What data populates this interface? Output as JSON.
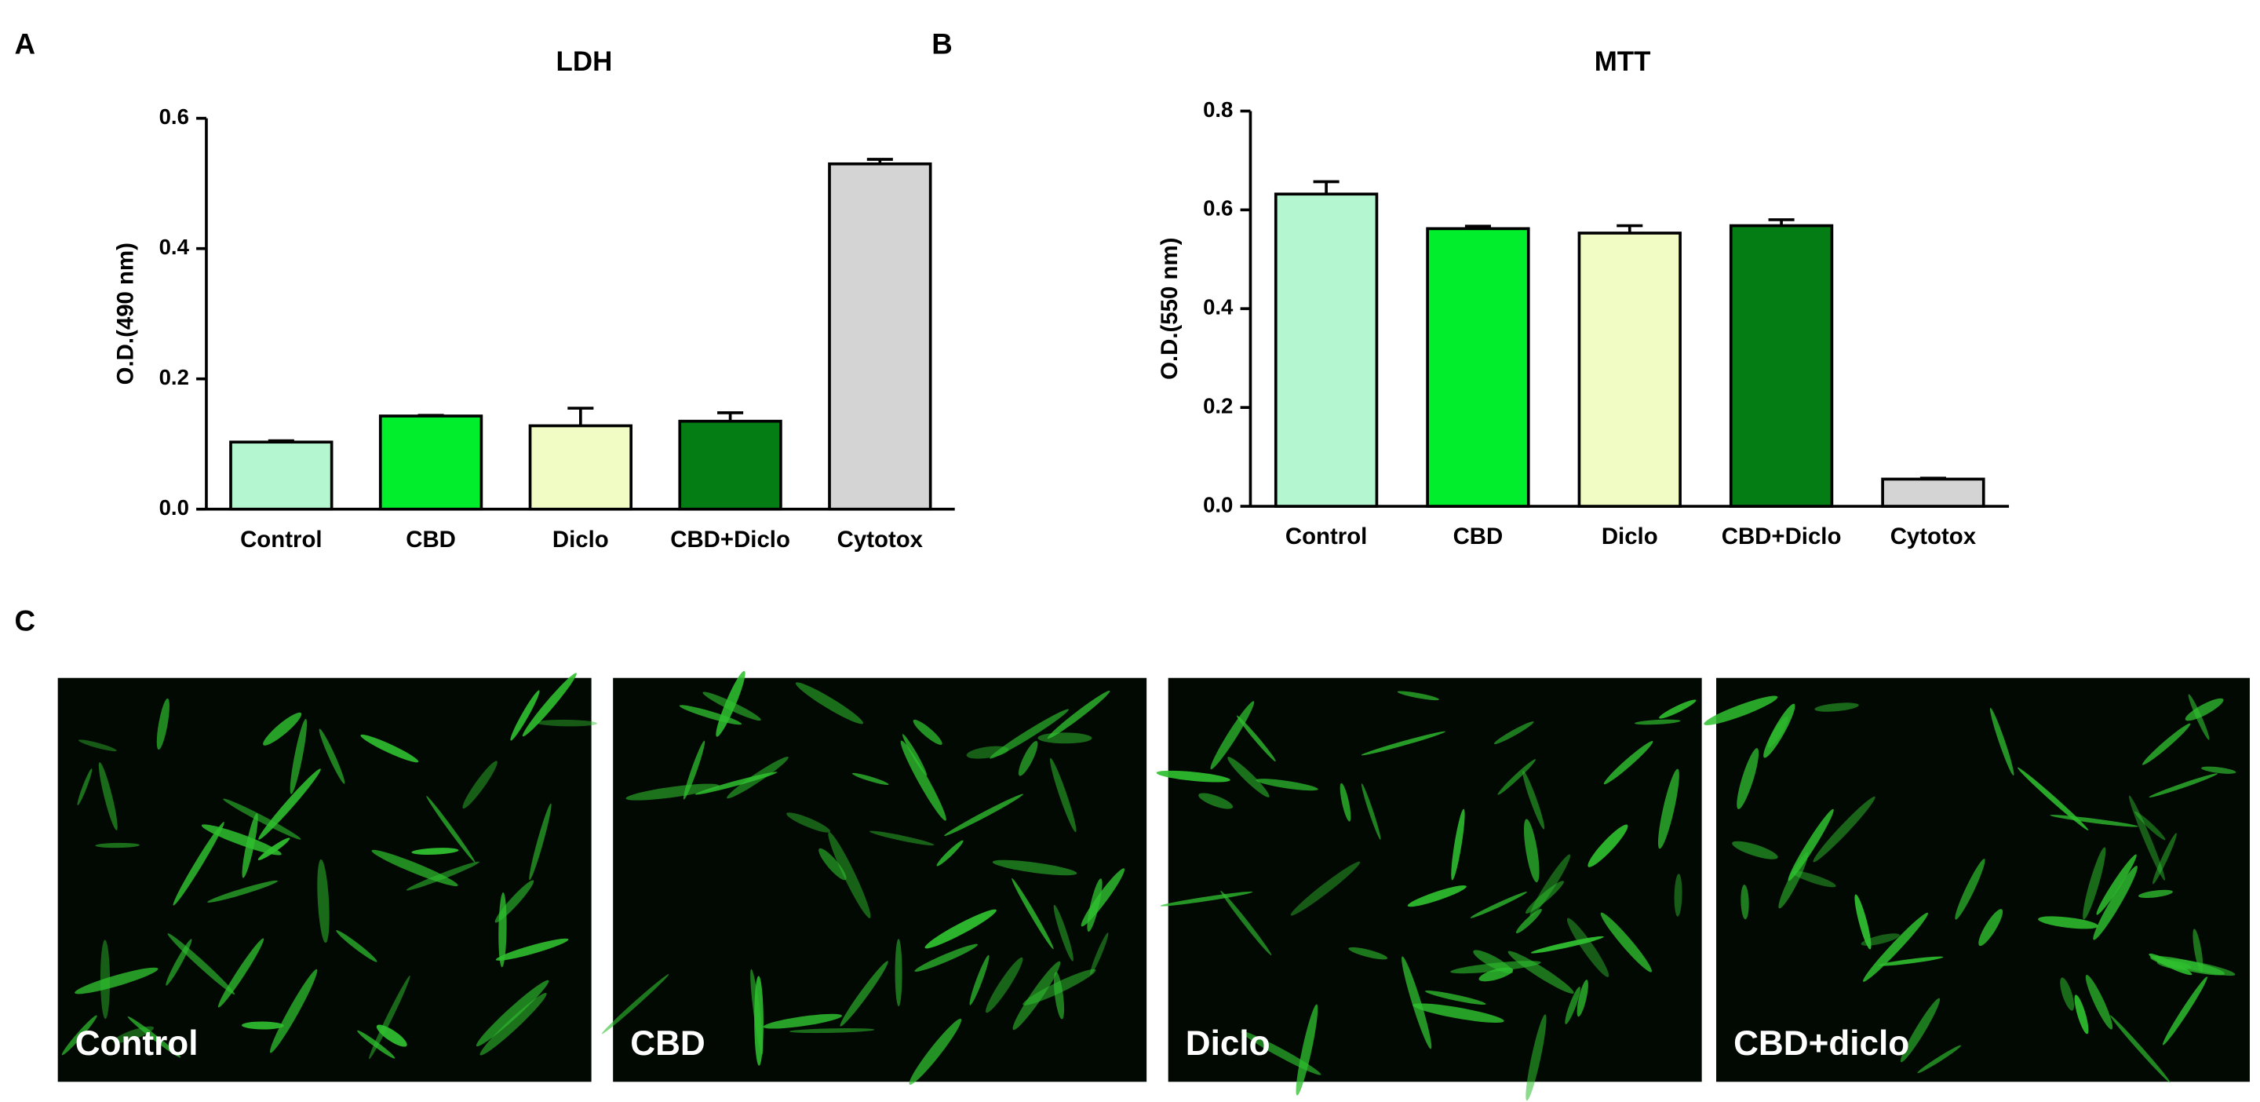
{
  "chart_data": [
    {
      "type": "bar",
      "panel": "A",
      "title": "LDH",
      "y_label": "O.D.(490 nm)",
      "categories": [
        "Control",
        "CBD",
        "Diclo",
        "CBD+Diclo",
        "Cytotox"
      ],
      "values": [
        0.103,
        0.143,
        0.128,
        0.135,
        0.53
      ],
      "errors": [
        0.002,
        0.001,
        0.027,
        0.013,
        0.007
      ],
      "colors": [
        "#b3f6cf",
        "#00ee2c",
        "#f1fcc4",
        "#047d14",
        "#d4d4d4"
      ],
      "ylim": [
        0,
        0.6
      ],
      "yticks": [
        {
          "value": 0,
          "label": "0.0"
        },
        0.2,
        0.4,
        0.6
      ]
    },
    {
      "type": "bar",
      "panel": "B",
      "title": "MTT",
      "y_label": "O.D.(550 nm)",
      "categories": [
        "Control",
        "CBD",
        "Diclo",
        "CBD+Diclo",
        "Cytotox"
      ],
      "values": [
        0.632,
        0.562,
        0.553,
        0.568,
        0.055
      ],
      "errors": [
        0.025,
        0.005,
        0.015,
        0.012,
        0.002
      ],
      "colors": [
        "#b3f6cf",
        "#00ee2c",
        "#f1fcc4",
        "#047d14",
        "#d4d4d4"
      ],
      "ylim": [
        0,
        0.8
      ],
      "yticks": [
        {
          "value": 0,
          "label": "0.0"
        },
        0.2,
        0.4,
        0.6,
        0.8
      ]
    }
  ],
  "images": {
    "panel": "C",
    "labels": [
      "Control",
      "CBD",
      "Diclo",
      "CBD+diclo"
    ]
  }
}
